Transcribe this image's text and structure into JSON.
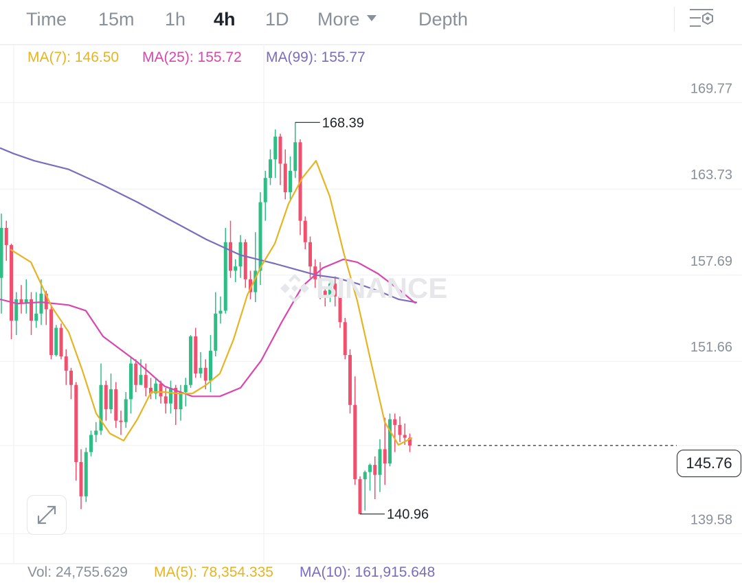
{
  "tabs": [
    {
      "id": "time",
      "label": "Time",
      "active": false
    },
    {
      "id": "15m",
      "label": "15m",
      "active": false
    },
    {
      "id": "1h",
      "label": "1h",
      "active": false
    },
    {
      "id": "4h",
      "label": "4h",
      "active": true
    },
    {
      "id": "1d",
      "label": "1D",
      "active": false
    },
    {
      "id": "more",
      "label": "More",
      "active": false
    },
    {
      "id": "depth",
      "label": "Depth",
      "active": false
    }
  ],
  "ma_legend": {
    "ma7": "MA(7): 146.50",
    "ma25": "MA(25): 155.72",
    "ma99": "MA(99): 155.77"
  },
  "volume_legend": {
    "vol": "Vol: 24,755.629",
    "ma5": "MA(5): 78,354.335",
    "ma10": "MA(10): 161,915.648"
  },
  "last_price": "145.76",
  "watermark": "BINANCE",
  "colors": {
    "up": "#2ebd85",
    "down": "#f0506e",
    "ma7": "#e6b422",
    "ma25": "#d946ae",
    "ma99": "#7b6cbd",
    "axis_text": "#8a9099",
    "grid": "#eef0f2"
  },
  "chart_data": {
    "type": "candlestick",
    "y_axis_ticks": [
      169.77,
      163.73,
      157.69,
      151.66,
      145.76,
      139.58
    ],
    "y_axis_labels": [
      "169.77",
      "163.73",
      "157.69",
      "151.66",
      "139.58"
    ],
    "ylim": [
      138.3,
      172.3
    ],
    "high_marker": "168.39",
    "low_marker": "140.96",
    "last_price": 145.76,
    "candles": [
      [
        157.5,
        161,
        162,
        155
      ],
      [
        161,
        159.8,
        161.5,
        158.7
      ],
      [
        159.8,
        154.5,
        159.9,
        153.2
      ],
      [
        154.5,
        156,
        156.5,
        153.5
      ],
      [
        156,
        155.7,
        157,
        155
      ],
      [
        155.7,
        156,
        157.4,
        155
      ],
      [
        156,
        154.5,
        156.5,
        153.5
      ],
      [
        154.5,
        155,
        156.5,
        154
      ],
      [
        155,
        156.4,
        157.4,
        154.2
      ],
      [
        156.4,
        155.3,
        156.6,
        154.2
      ],
      [
        155.3,
        152.1,
        155.5,
        151.8
      ],
      [
        152.1,
        154,
        154.2,
        152
      ],
      [
        154,
        152,
        154.3,
        151.8
      ],
      [
        152,
        151,
        152.5,
        150
      ],
      [
        151,
        150,
        151.2,
        149
      ],
      [
        150,
        144.6,
        150.2,
        143.3
      ],
      [
        144.6,
        142.2,
        145.5,
        141.3
      ],
      [
        142.2,
        145.3,
        145.6,
        141.8
      ],
      [
        145.3,
        146.5,
        146.8,
        145
      ],
      [
        146.5,
        146.8,
        147.4,
        146
      ],
      [
        146.8,
        150,
        151.5,
        146.5
      ],
      [
        150,
        148.3,
        150.3,
        147.5
      ],
      [
        148.3,
        149.7,
        150.8,
        148
      ],
      [
        149.7,
        147.5,
        150.2,
        147
      ],
      [
        147.5,
        147.4,
        148.2,
        146.5
      ],
      [
        147.4,
        149,
        149.5,
        147
      ],
      [
        149,
        151.5,
        152,
        148
      ],
      [
        151.5,
        150,
        151.8,
        149.5
      ],
      [
        150,
        150.7,
        151.8,
        150
      ],
      [
        150.7,
        149.8,
        151.5,
        149.2
      ],
      [
        149.8,
        149.4,
        150.5,
        149
      ],
      [
        149.4,
        150.1,
        150.5,
        149
      ],
      [
        150.1,
        149.2,
        150.3,
        148.7
      ],
      [
        149.2,
        148.7,
        149.8,
        148
      ],
      [
        148.7,
        149.8,
        150.3,
        148
      ],
      [
        149.8,
        148.3,
        150,
        147.2
      ],
      [
        148.3,
        149.5,
        150,
        147.5
      ],
      [
        149.5,
        150,
        150.5,
        148.5
      ],
      [
        150,
        153.4,
        153.5,
        149.8
      ],
      [
        153.4,
        150.8,
        154,
        150.5
      ],
      [
        150.8,
        151.2,
        152.3,
        150.5
      ],
      [
        151.2,
        150.3,
        151.8,
        149.7
      ],
      [
        150.3,
        152.4,
        153.5,
        149.5
      ],
      [
        152.4,
        155,
        156.5,
        152
      ],
      [
        155,
        155.2,
        156.2,
        154.3
      ],
      [
        155.2,
        160,
        161,
        155
      ],
      [
        160,
        158,
        161.5,
        157.5
      ],
      [
        158,
        158.3,
        158.8,
        157.2
      ],
      [
        158.3,
        160,
        160.5,
        157.5
      ],
      [
        160,
        157.4,
        160.2,
        156.8
      ],
      [
        157.4,
        156.5,
        158,
        156
      ],
      [
        156.5,
        158,
        160.7,
        155.8
      ],
      [
        158,
        162.8,
        163.5,
        157
      ],
      [
        162.8,
        164.5,
        165,
        161.5
      ],
      [
        164.5,
        165.8,
        166.5,
        164
      ],
      [
        165.8,
        167.4,
        167.9,
        164.5
      ],
      [
        167.4,
        165.5,
        167.6,
        164
      ],
      [
        165.5,
        163.5,
        166.5,
        163
      ],
      [
        163.5,
        165,
        166,
        163
      ],
      [
        165,
        167,
        168.39,
        164.5
      ],
      [
        167,
        161.5,
        167.2,
        160.5
      ],
      [
        161.5,
        160,
        161.8,
        159.5
      ],
      [
        160,
        158.3,
        160.4,
        157.5
      ],
      [
        158.3,
        157.4,
        158.8,
        156.8
      ],
      [
        157.4,
        156.6,
        158.6,
        156
      ],
      [
        156.6,
        156.3,
        156.9,
        155.5
      ],
      [
        156.3,
        157.1,
        157.3,
        155.8
      ],
      [
        157.1,
        156.2,
        157.6,
        155.5
      ],
      [
        156.2,
        154.4,
        156.8,
        154
      ],
      [
        154.4,
        152.1,
        154.7,
        151.8
      ],
      [
        152.1,
        148.6,
        152.5,
        148
      ],
      [
        148.6,
        143.4,
        150.6,
        143
      ],
      [
        143.4,
        140.96,
        143.6,
        140.96
      ],
      [
        143.4,
        143.9,
        144,
        141.2
      ],
      [
        143.9,
        144.4,
        144.5,
        142.6
      ],
      [
        144.4,
        143.7,
        145,
        142
      ],
      [
        143.7,
        145.5,
        146.2,
        142.5
      ],
      [
        145.5,
        144.5,
        147.7,
        143
      ],
      [
        144.5,
        147.6,
        148,
        144.3
      ],
      [
        147.6,
        147.2,
        148,
        145.3
      ],
      [
        147.2,
        146.5,
        147.8,
        146
      ],
      [
        146.5,
        146.3,
        147.3,
        145.8
      ],
      [
        146.3,
        145.76,
        146.6,
        145.3
      ]
    ],
    "ma7": [
      [
        15,
        159.5
      ],
      [
        45,
        158.6
      ],
      [
        75,
        155.5
      ],
      [
        100,
        153.7
      ],
      [
        120,
        151
      ],
      [
        140,
        148
      ],
      [
        160,
        146.6
      ],
      [
        180,
        146.1
      ],
      [
        200,
        147.6
      ],
      [
        220,
        149.5
      ],
      [
        240,
        149.5
      ],
      [
        260,
        149.4
      ],
      [
        280,
        149.4
      ],
      [
        300,
        150
      ],
      [
        320,
        150.8
      ],
      [
        340,
        153.2
      ],
      [
        360,
        156.3
      ],
      [
        380,
        158.3
      ],
      [
        400,
        159.9
      ],
      [
        420,
        162.7
      ],
      [
        440,
        164.5
      ],
      [
        460,
        165.7
      ],
      [
        480,
        163.2
      ],
      [
        500,
        159.3
      ],
      [
        520,
        155.9
      ],
      [
        540,
        151.6
      ],
      [
        560,
        147.4
      ],
      [
        580,
        145.8
      ],
      [
        600,
        146.3
      ]
    ],
    "ma25": [
      [
        0,
        156
      ],
      [
        25,
        155.7
      ],
      [
        60,
        155.8
      ],
      [
        100,
        155.6
      ],
      [
        125,
        155.2
      ],
      [
        150,
        153.4
      ],
      [
        200,
        151.6
      ],
      [
        240,
        149.9
      ],
      [
        280,
        149.2
      ],
      [
        320,
        149.2
      ],
      [
        350,
        149.8
      ],
      [
        380,
        151.7
      ],
      [
        410,
        154.4
      ],
      [
        440,
        156.9
      ],
      [
        470,
        158.2
      ],
      [
        500,
        158.8
      ],
      [
        520,
        158.6
      ],
      [
        550,
        157.8
      ],
      [
        580,
        156.7
      ],
      [
        605,
        155.72
      ]
    ],
    "ma99": [
      [
        0,
        166.6
      ],
      [
        20,
        166.2
      ],
      [
        50,
        165.7
      ],
      [
        100,
        165.1
      ],
      [
        150,
        164
      ],
      [
        200,
        162.8
      ],
      [
        250,
        161.5
      ],
      [
        300,
        160.2
      ],
      [
        350,
        159.1
      ],
      [
        400,
        158.5
      ],
      [
        430,
        158.1
      ],
      [
        460,
        157.7
      ],
      [
        490,
        157.5
      ],
      [
        520,
        157.1
      ],
      [
        550,
        156.6
      ],
      [
        580,
        156
      ],
      [
        607,
        155.77
      ]
    ]
  }
}
